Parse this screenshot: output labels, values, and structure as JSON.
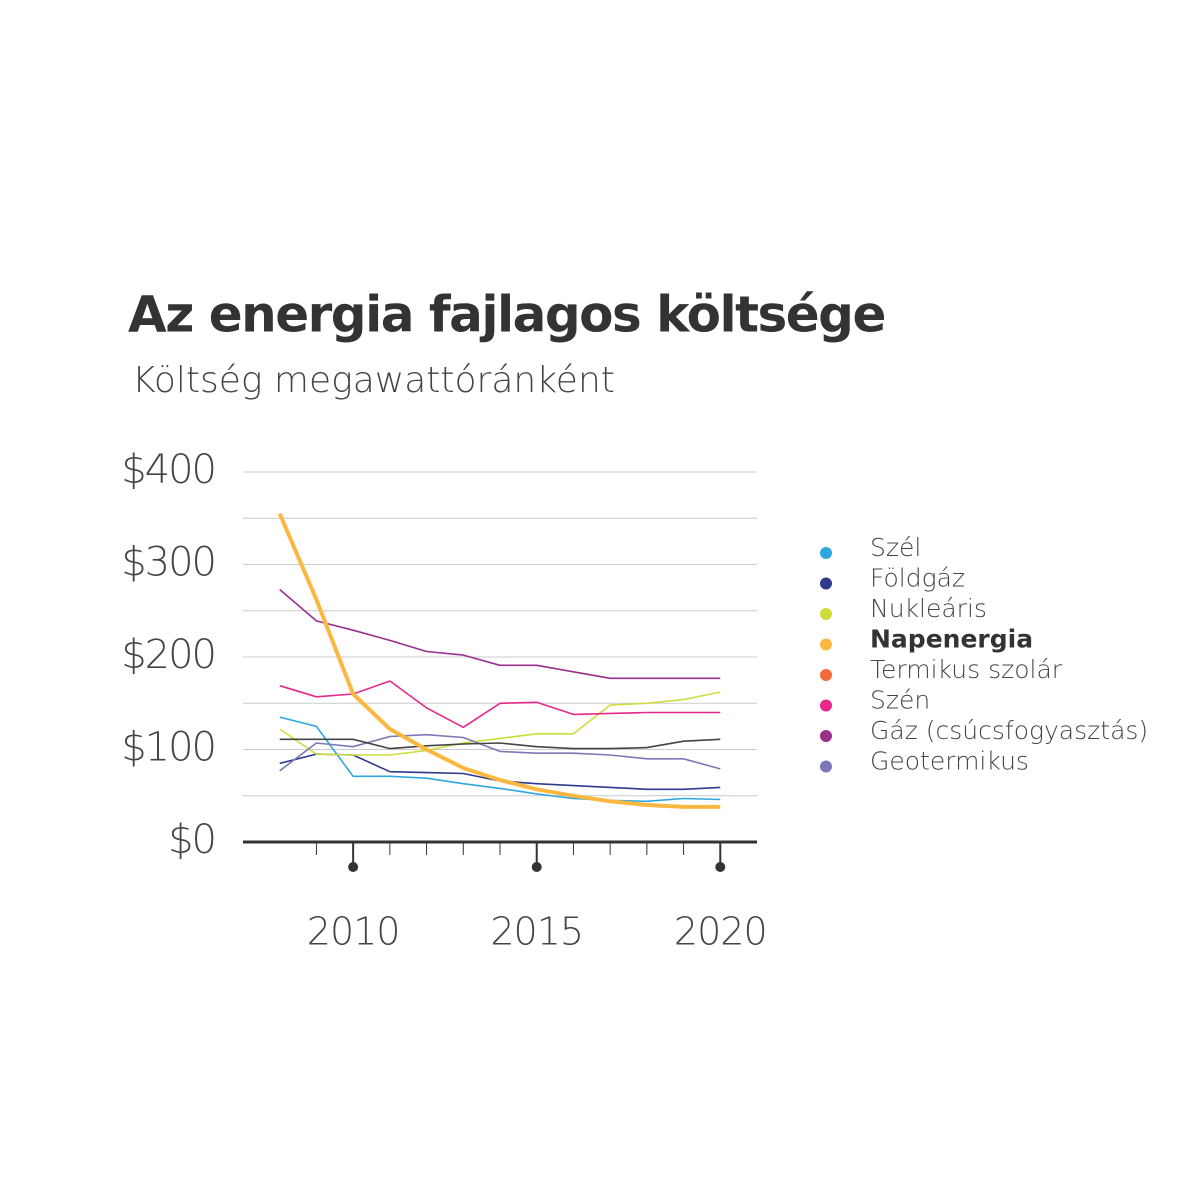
{
  "chart_data": {
    "type": "line",
    "title": "Az energia fajlagos költsége",
    "subtitle": "Költség megawattóránként",
    "x": [
      2008,
      2009,
      2010,
      2011,
      2012,
      2013,
      2014,
      2015,
      2016,
      2017,
      2018,
      2019,
      2020
    ],
    "xlim": [
      2007,
      2021
    ],
    "xticks": [
      2010,
      2015,
      2020
    ],
    "minor_xticks": [
      2009,
      2011,
      2012,
      2013,
      2014,
      2016,
      2017,
      2018,
      2019
    ],
    "ylim": [
      0,
      400
    ],
    "yticks": [
      {
        "value": 0,
        "label": "$0"
      },
      {
        "value": 100,
        "label": "$100"
      },
      {
        "value": 200,
        "label": "$200"
      },
      {
        "value": 300,
        "label": "$300"
      },
      {
        "value": 400,
        "label": "$400"
      }
    ],
    "minor_yticks": [
      50,
      150,
      250,
      350
    ],
    "grid": true,
    "legend": "right",
    "series": [
      {
        "name": "Szél",
        "color": "#2ea7df",
        "values": [
          135,
          125,
          71,
          71,
          69,
          63,
          58,
          52,
          47,
          45,
          44,
          47,
          46
        ]
      },
      {
        "name": "Földgáz",
        "color": "#2e3a8c",
        "values": [
          85,
          95,
          94,
          76,
          75,
          74,
          66,
          63,
          61,
          59,
          57,
          57,
          59
        ]
      },
      {
        "name": "Nukleáris",
        "color": "#cfdc3c",
        "values": [
          122,
          95,
          94,
          94,
          99,
          107,
          112,
          117,
          117,
          148,
          150,
          154,
          162
        ]
      },
      {
        "name": "Napenergia",
        "color": "#fbb740",
        "bold": true,
        "values": [
          355,
          262,
          160,
          122,
          100,
          80,
          67,
          57,
          50,
          44,
          40,
          38,
          38
        ]
      },
      {
        "name": "Termikus szolár",
        "color": "#f26b3a",
        "values": [
          null,
          null,
          null,
          null,
          null,
          null,
          null,
          null,
          null,
          null,
          null,
          null,
          null
        ]
      },
      {
        "name": "Szén",
        "color": "#e8288a",
        "values": [
          169,
          157,
          160,
          174,
          145,
          124,
          150,
          151,
          138,
          139,
          140,
          140,
          140
        ]
      },
      {
        "name": "Gáz (csúcsfogyasztás)",
        "color": "#9b2f8f",
        "values": [
          273,
          239,
          229,
          218,
          206,
          202,
          191,
          191,
          184,
          177,
          177,
          177,
          177
        ]
      },
      {
        "name": "Geotermikus",
        "color": "#7b78b8",
        "values": [
          77,
          107,
          103,
          114,
          116,
          113,
          98,
          96,
          96,
          94,
          90,
          90,
          79
        ]
      },
      {
        "color": "#444444",
        "values": [
          111,
          111,
          111,
          101,
          104,
          106,
          107,
          103,
          101,
          101,
          102,
          109,
          111
        ]
      }
    ]
  }
}
